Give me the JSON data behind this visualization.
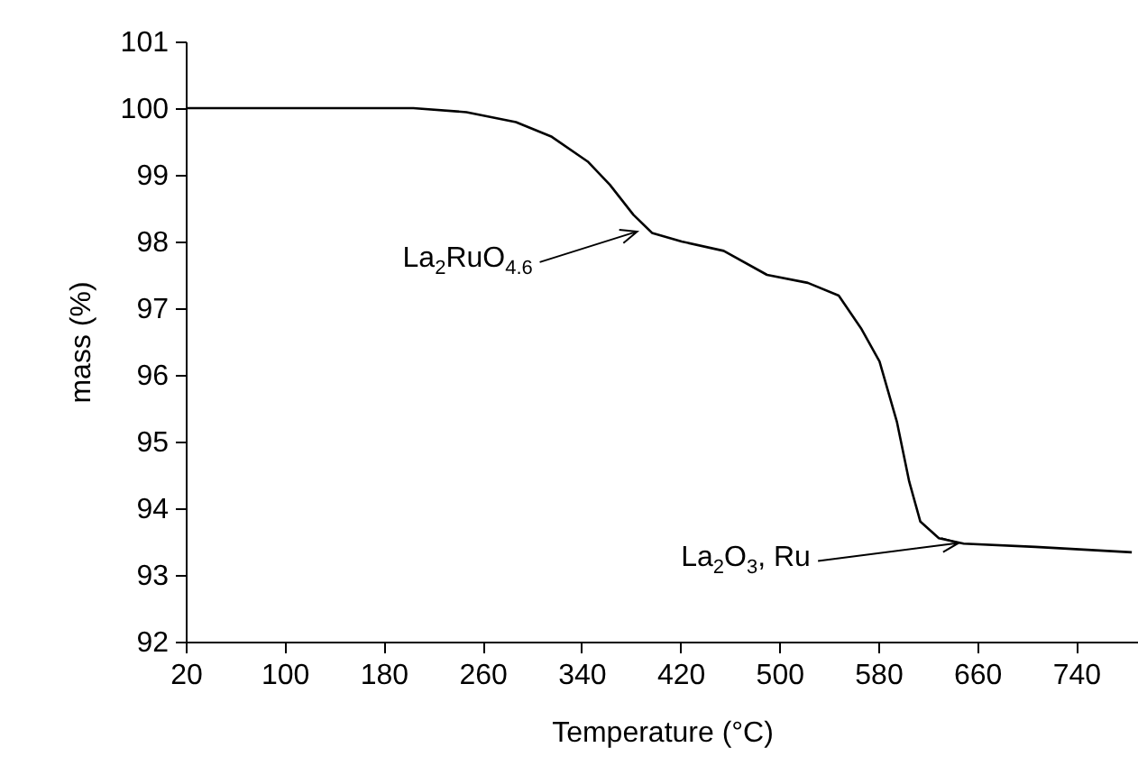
{
  "chart_data": {
    "type": "line",
    "xlabel": "Temperature (°C)",
    "ylabel": "mass (%)",
    "x": [
      20,
      100,
      204,
      247,
      287,
      316,
      345,
      363,
      382,
      397,
      421,
      455,
      490,
      523,
      548,
      566,
      581,
      595,
      605,
      614,
      629,
      649,
      707,
      785
    ],
    "series": [
      {
        "color": "#000000",
        "values": [
          100.0,
          100.0,
          100.0,
          99.94,
          99.79,
          99.57,
          99.2,
          98.85,
          98.4,
          98.13,
          98.0,
          97.86,
          97.5,
          97.38,
          97.19,
          96.7,
          96.2,
          95.3,
          94.4,
          93.8,
          93.55,
          93.47,
          93.42,
          93.34
        ]
      }
    ],
    "xlim": [
      20,
      790
    ],
    "xticks": [
      20,
      100,
      180,
      260,
      340,
      420,
      500,
      580,
      660,
      740
    ],
    "ylim": [
      92,
      101
    ],
    "yticks": [
      92,
      93,
      94,
      95,
      96,
      97,
      98,
      99,
      100,
      101
    ],
    "grid": false,
    "annotations": [
      {
        "text": "La$_{2}$RuO$_{4.6}$",
        "x": 385,
        "y": 98.15
      },
      {
        "text": "La$_{2}$O$_{3}$, Ru",
        "x": 645,
        "y": 93.48
      }
    ]
  }
}
